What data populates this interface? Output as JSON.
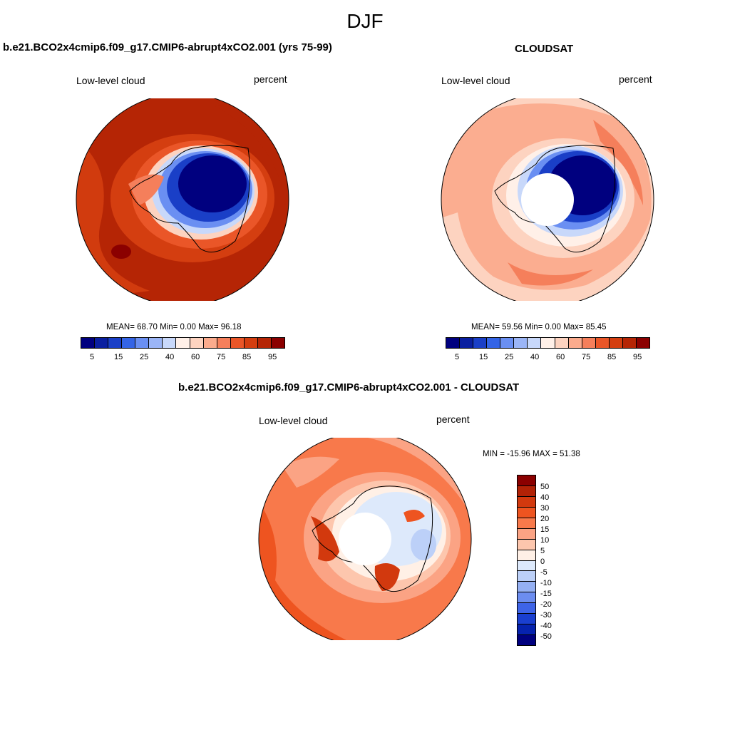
{
  "figure": {
    "season": "DJF"
  },
  "panels": {
    "model": {
      "title": "b.e21.BCO2x4cmip6.f09_g17.CMIP6-abrupt4xCO2.001 (yrs 75-99)",
      "variable": "Low-level cloud",
      "units": "percent",
      "stats": "MEAN=  68.70  Min=   0.00  Max=  96.18"
    },
    "obs": {
      "title": "CLOUDSAT",
      "variable": "Low-level cloud",
      "units": "percent",
      "stats": "MEAN=  59.56  Min=   0.00  Max=  85.45"
    },
    "diff": {
      "title": "b.e21.BCO2x4cmip6.f09_g17.CMIP6-abrupt4xCO2.001 - CLOUDSAT",
      "variable": "Low-level cloud",
      "units": "percent",
      "stats": "MIN = -15.96 MAX =  51.38"
    }
  },
  "colorbars": {
    "absolute": {
      "colors": [
        "#00007f",
        "#0a1fa0",
        "#1a3fc7",
        "#3464e6",
        "#6a8ff2",
        "#9bb5f6",
        "#c8d8fa",
        "#fff0e8",
        "#fdd3c0",
        "#fbab8d",
        "#f57f5b",
        "#ea5628",
        "#d43e10",
        "#b52505",
        "#8b0000"
      ],
      "tick_labels": [
        "5",
        "15",
        "25",
        "40",
        "60",
        "75",
        "85",
        "95"
      ]
    },
    "difference": {
      "colors_top_to_bottom": [
        "#8b0000",
        "#b22206",
        "#d2390e",
        "#ee5420",
        "#f8794b",
        "#fba384",
        "#fdc6ad",
        "#fff0e6",
        "#dde9fb",
        "#bcd0f8",
        "#95b0f3",
        "#6c8df0",
        "#3e64e8",
        "#1a3fd0",
        "#0622ae",
        "#00007f"
      ],
      "tick_labels": [
        "50",
        "40",
        "30",
        "20",
        "15",
        "10",
        "5",
        "0",
        "-5",
        "-10",
        "-15",
        "-20",
        "-30",
        "-40",
        "-50"
      ]
    }
  }
}
